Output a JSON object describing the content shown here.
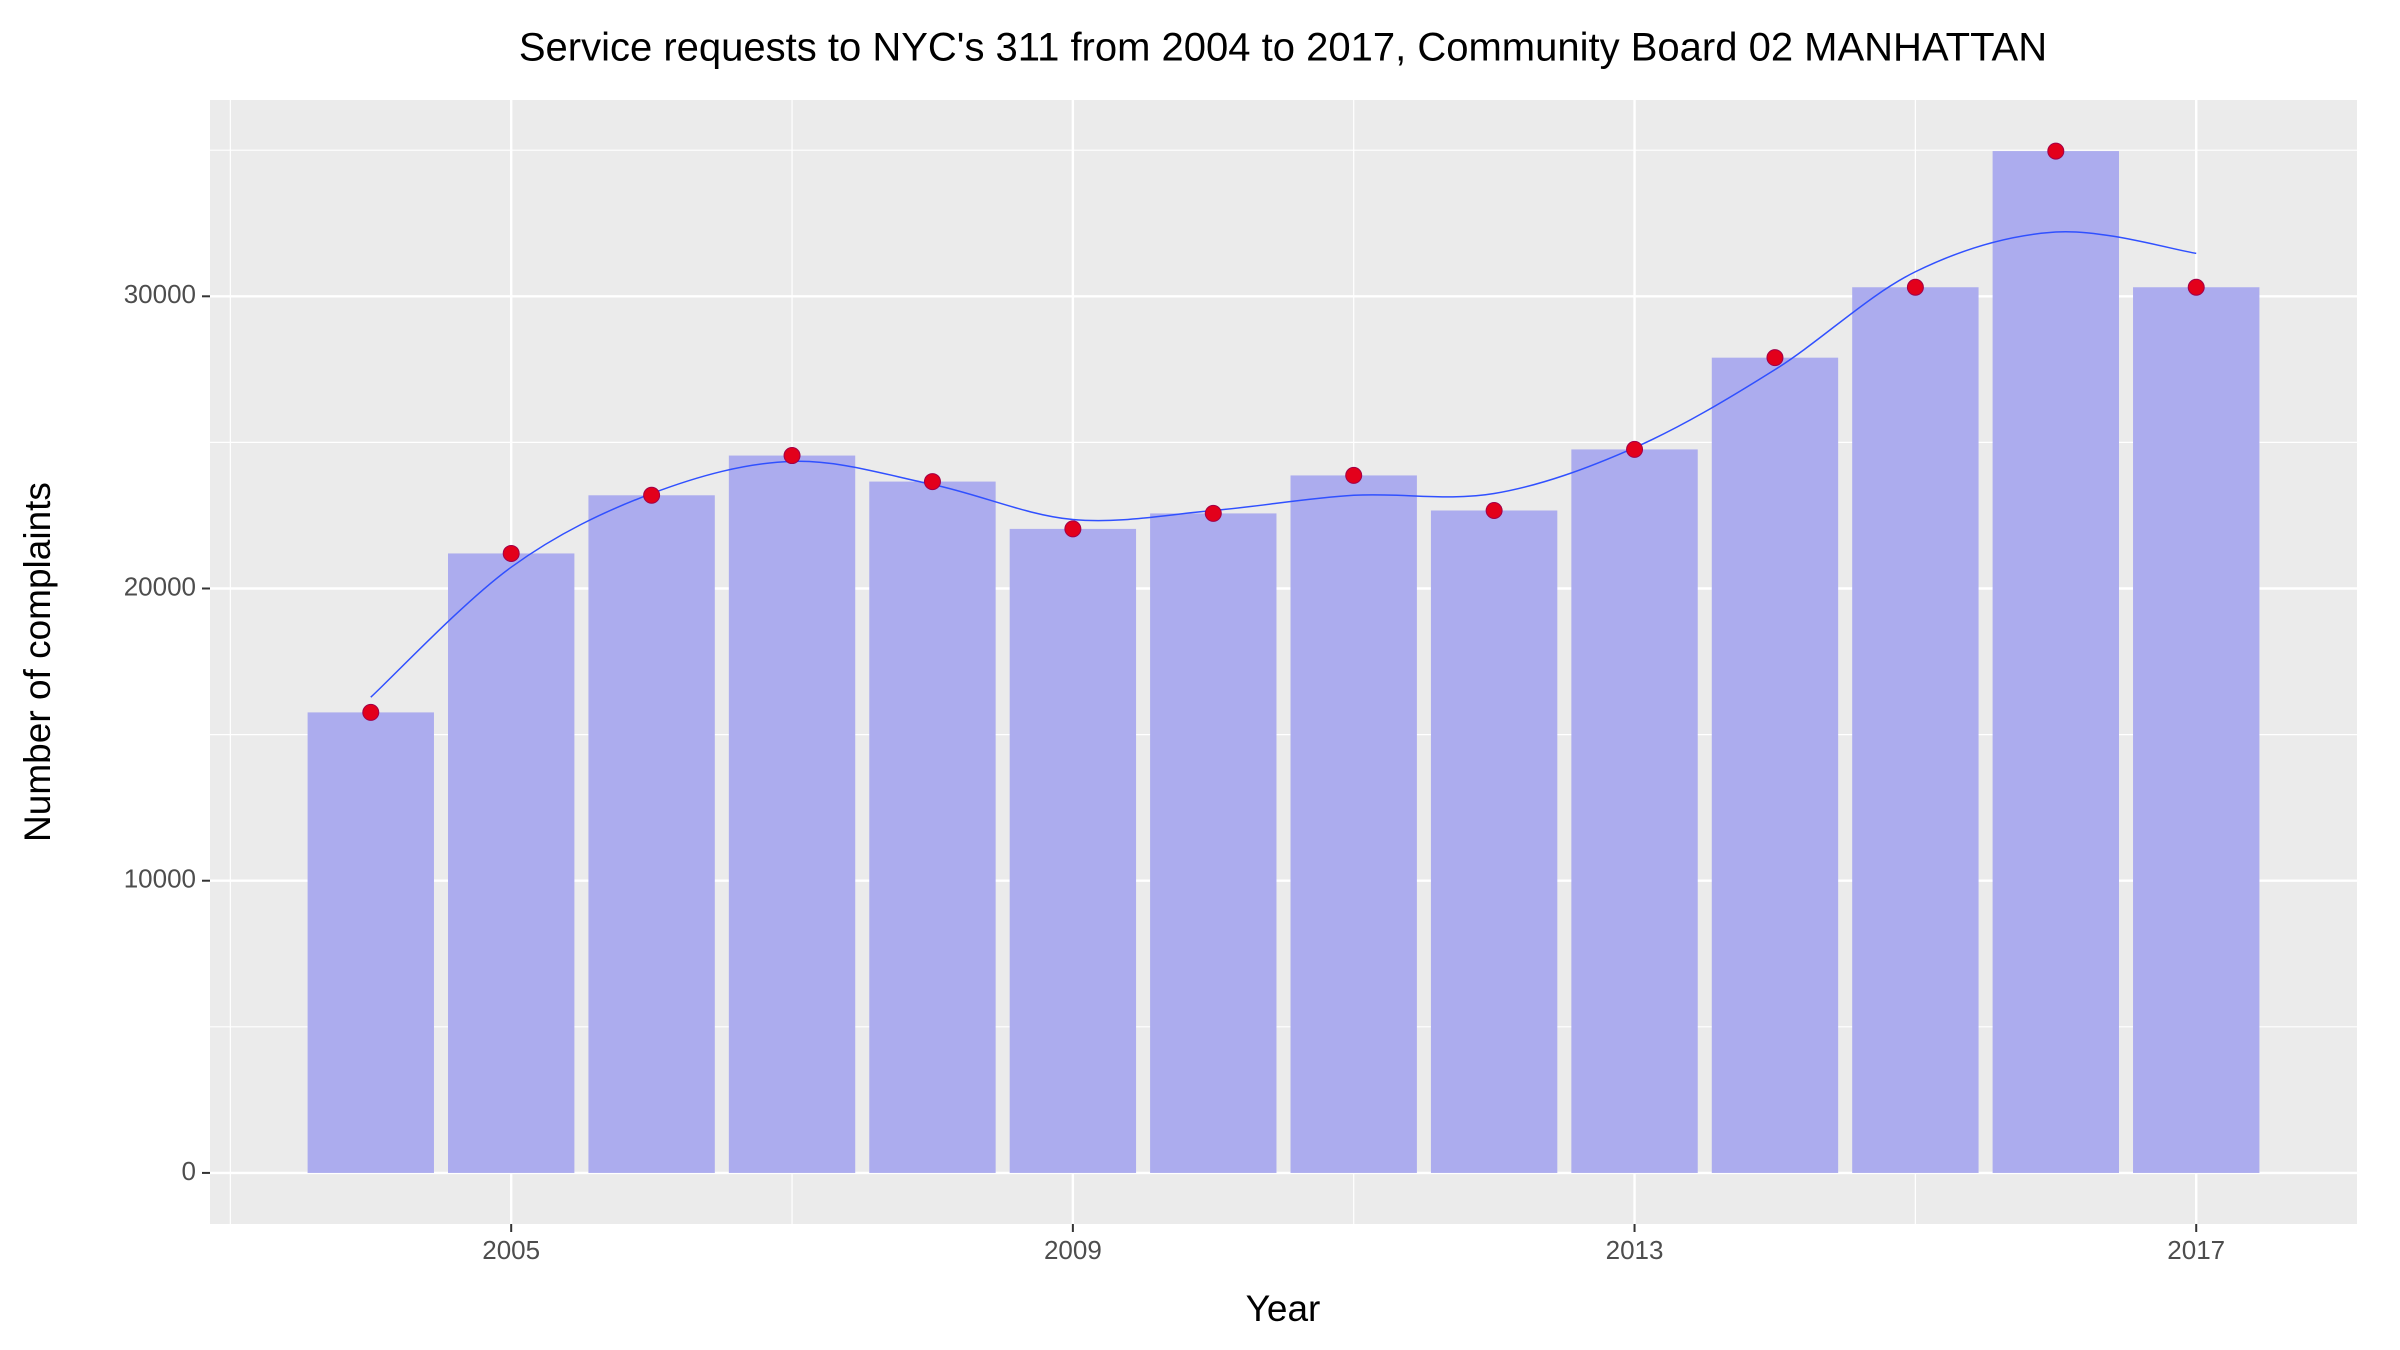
{
  "chart_data": {
    "type": "bar",
    "title": "Service requests to NYC's 311 from 2004 to 2017, Community Board 02 MANHATTAN",
    "x_label": "Year",
    "y_label": "Number of complaints",
    "x": [
      2004,
      2005,
      2006,
      2007,
      2008,
      2009,
      2010,
      2011,
      2012,
      2013,
      2014,
      2015,
      2016,
      2017
    ],
    "values": [
      15760,
      21200,
      23190,
      24550,
      23660,
      22040,
      22570,
      23870,
      22670,
      24760,
      27900,
      30310,
      34970,
      30310
    ],
    "bar_color": "#acacee",
    "point_color": "#e3001b",
    "smooth": {
      "color": "#3050ff",
      "values": [
        16280,
        20730,
        23250,
        24350,
        23560,
        22360,
        22670,
        23190,
        23250,
        24820,
        27490,
        30840,
        32200,
        31470
      ]
    },
    "xlim": [
      2002.855,
      2018.145
    ],
    "xticks": [
      2005,
      2009,
      2013,
      2017
    ],
    "ylim": [
      -1748,
      36718
    ],
    "yticks": [
      0,
      10000,
      20000,
      30000
    ],
    "grid": true
  }
}
